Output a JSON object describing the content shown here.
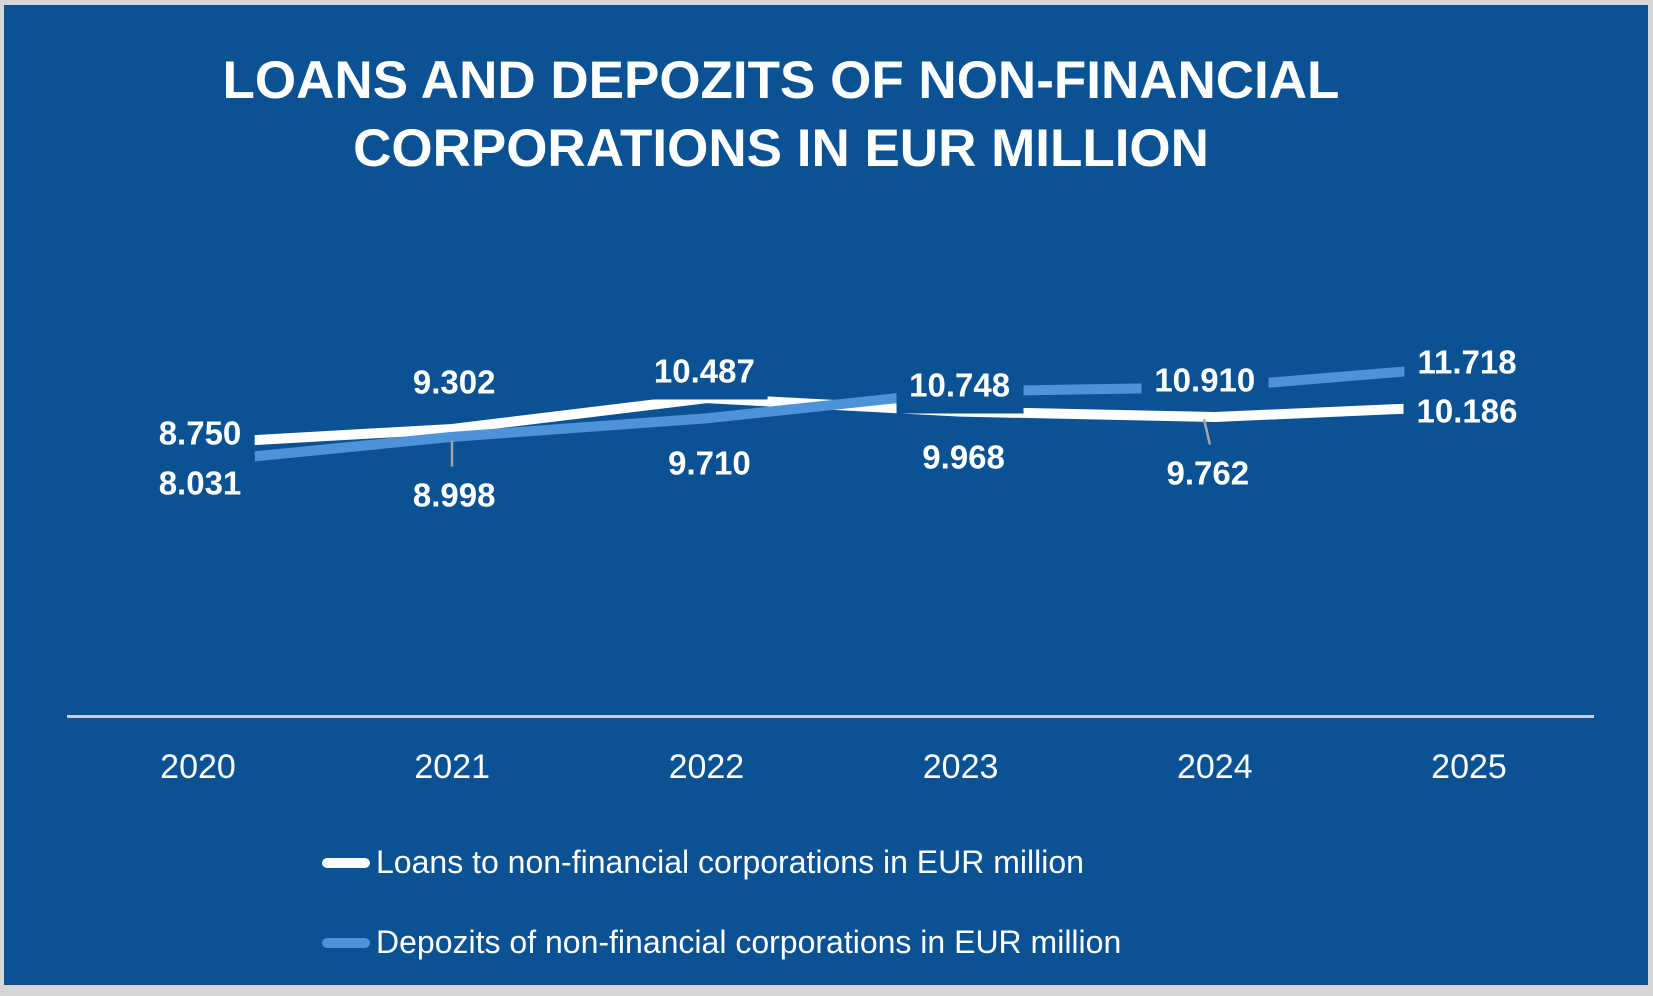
{
  "title": {
    "line1": "LOANS AND DEPOZITS OF NON-FINANCIAL",
    "line2": "CORPORATIONS IN EUR MILLION"
  },
  "chart_data": {
    "type": "line",
    "title": "LOANS AND DEPOZITS OF NON-FINANCIAL CORPORATIONS IN EUR MILLION",
    "categories": [
      "2020",
      "2021",
      "2022",
      "2023",
      "2024",
      "2025"
    ],
    "series": [
      {
        "name": "Loans to non-financial corporations in EUR million",
        "color": "#FFFFFF",
        "values": [
          8750,
          9302,
          10487,
          9968,
          9762,
          10186
        ],
        "labels": [
          "8.750",
          "9.302",
          "10.487",
          "9.968",
          "9.762",
          "10.186"
        ]
      },
      {
        "name": "Depozits of non-financial corporations in EUR million",
        "color": "#4C93D9",
        "values": [
          8031,
          8998,
          9710,
          10748,
          10910,
          11718
        ],
        "labels": [
          "8.031",
          "8.998",
          "9.710",
          "10.748",
          "10.910",
          "11.718"
        ]
      }
    ],
    "xlabel": "",
    "ylabel": "",
    "unit": "EUR million",
    "y_axis_visible": false,
    "gridlines": false,
    "x_axis_line": true,
    "legend_position": "bottom-left",
    "background_color": "#0B5295",
    "axis_line_color": "#C4CDE4",
    "leader_line_color": "#A6A6A6",
    "data_label_color": "#FFFFFF"
  }
}
